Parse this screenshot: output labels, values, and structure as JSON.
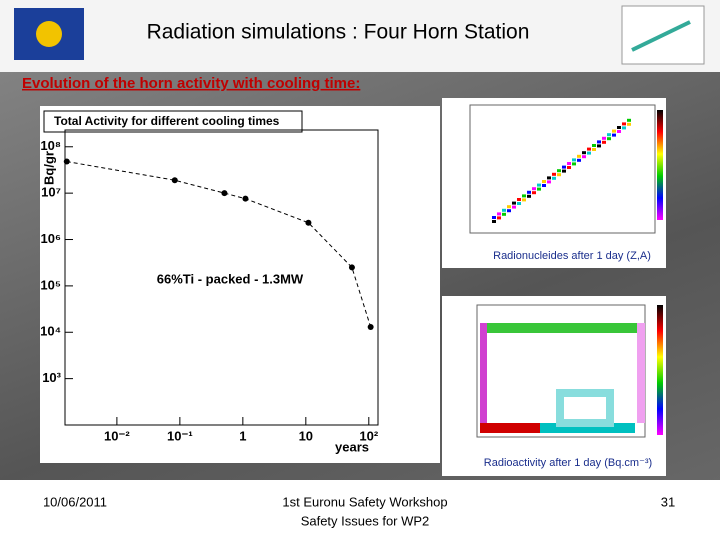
{
  "header": {
    "title": "Radiation simulations : Four Horn Station"
  },
  "subtitle": "Evolution of the horn activity with cooling time:",
  "chart_data": {
    "type": "line",
    "title": "Total Activity for different cooling times",
    "x_label": "years",
    "y_label": "Bq/gr",
    "annotation": "66%Ti - packed - 1.3MW",
    "x": [
      0.0016,
      0.083,
      0.51,
      1.1,
      11,
      54,
      107
    ],
    "values": [
      48000000,
      19000000,
      10000000,
      7600000,
      2300000,
      250000,
      13000
    ],
    "color": "#000000",
    "log_x": true,
    "log_y": true,
    "xlim": [
      0.0015,
      140
    ],
    "ylim": [
      100,
      230000000
    ],
    "xticks": [
      {
        "value": 0.01,
        "label": "10⁻²"
      },
      {
        "value": 0.1,
        "label": "10⁻¹"
      },
      1,
      10,
      {
        "value": 100,
        "label": "10²"
      }
    ],
    "yticks": [
      {
        "value": 1000,
        "label": "10³"
      },
      {
        "value": 10000,
        "label": "10⁴"
      },
      {
        "value": 100000,
        "label": "10⁵"
      },
      {
        "value": 1000000,
        "label": "10⁶"
      },
      {
        "value": 10000000,
        "label": "10⁷"
      },
      {
        "value": 100000000,
        "label": "10⁸"
      }
    ]
  },
  "images": [
    {
      "caption": "Radionucleides after 1 day (Z,A)"
    },
    {
      "caption": "Radioactivity after 1 day (Bq.cm⁻³)"
    }
  ],
  "footer": {
    "date": "10/06/2011",
    "event": "1st Euronu Safety Workshop",
    "session": "Safety Issues for WP2",
    "page": "31"
  }
}
